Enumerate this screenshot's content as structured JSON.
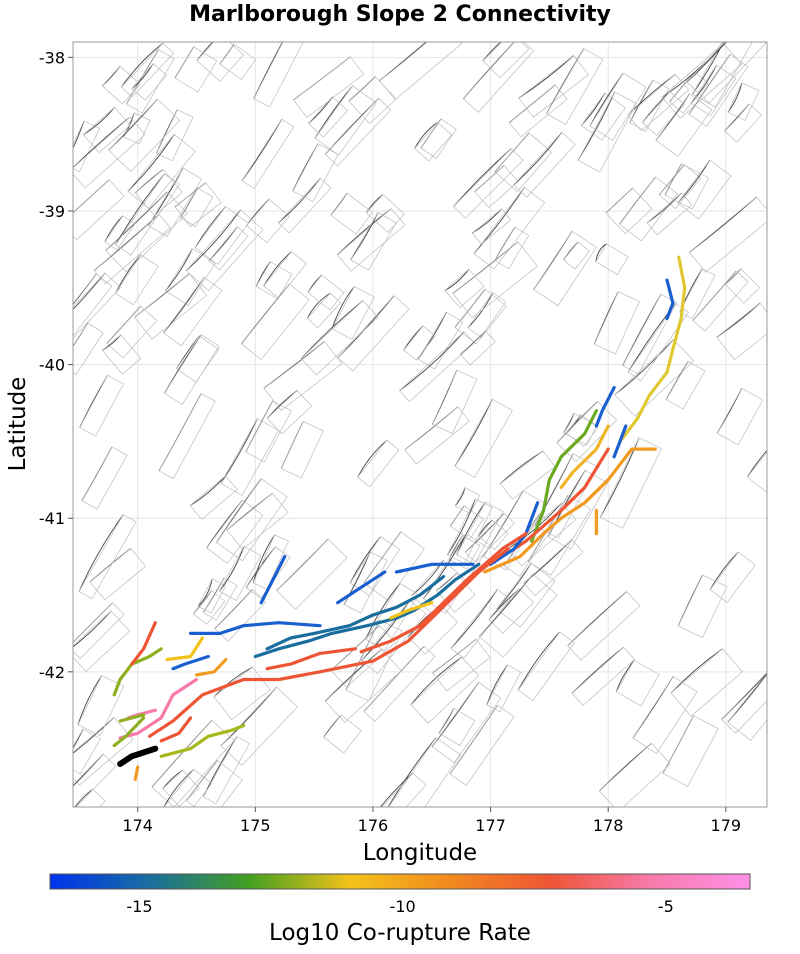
{
  "chart_data": {
    "type": "map",
    "title": "Marlborough Slope 2 Connectivity",
    "xlabel": "Longitude",
    "ylabel": "Latitude",
    "xlim": [
      173.45,
      179.35
    ],
    "ylim": [
      -42.88,
      -37.9
    ],
    "x_ticks": [
      "174",
      "175",
      "176",
      "177",
      "178",
      "179"
    ],
    "y_ticks": [
      "-38",
      "-39",
      "-40",
      "-41",
      "-42"
    ],
    "grid": true,
    "colorbar": {
      "label": "Log10 Co-rupture Rate",
      "range": [
        -16.7,
        -3.4
      ],
      "ticks": [
        "-15",
        "-10",
        "-5"
      ],
      "colors": [
        "#0033ee",
        "#1a6e9e",
        "#44a020",
        "#f3c21a",
        "#f28a1e",
        "#ee5535",
        "#f77aab",
        "#ff90e8"
      ]
    },
    "highlighted_faults": [
      {
        "rate": -16.0,
        "color": "#1a5fd0",
        "points": [
          [
            178.5,
            -39.45
          ],
          [
            178.55,
            -39.6
          ],
          [
            178.5,
            -39.7
          ]
        ]
      },
      {
        "rate": -9.5,
        "color": "#e0c830",
        "points": [
          [
            178.6,
            -39.3
          ],
          [
            178.65,
            -39.5
          ],
          [
            178.62,
            -39.7
          ],
          [
            178.55,
            -39.9
          ],
          [
            178.5,
            -40.05
          ],
          [
            178.35,
            -40.2
          ],
          [
            178.25,
            -40.35
          ],
          [
            178.1,
            -40.5
          ]
        ]
      },
      {
        "rate": -15.5,
        "color": "#1a5fd0",
        "points": [
          [
            178.05,
            -40.15
          ],
          [
            177.95,
            -40.3
          ],
          [
            177.9,
            -40.4
          ]
        ]
      },
      {
        "rate": -12.5,
        "color": "#6aaa20",
        "points": [
          [
            177.9,
            -40.3
          ],
          [
            177.8,
            -40.45
          ],
          [
            177.6,
            -40.6
          ],
          [
            177.5,
            -40.75
          ],
          [
            177.45,
            -40.95
          ],
          [
            177.35,
            -41.15
          ]
        ]
      },
      {
        "rate": -9.0,
        "color": "#f0b428",
        "points": [
          [
            178.0,
            -40.4
          ],
          [
            177.9,
            -40.55
          ],
          [
            177.7,
            -40.7
          ],
          [
            177.6,
            -40.8
          ]
        ]
      },
      {
        "rate": -6.0,
        "color": "#ee5535",
        "points": [
          [
            178.0,
            -40.55
          ],
          [
            177.8,
            -40.8
          ],
          [
            177.6,
            -40.95
          ],
          [
            177.45,
            -41.05
          ],
          [
            177.3,
            -41.15
          ],
          [
            177.2,
            -41.2
          ]
        ]
      },
      {
        "rate": -15.0,
        "color": "#1a5fd0",
        "points": [
          [
            178.15,
            -40.4
          ],
          [
            178.1,
            -40.5
          ],
          [
            178.05,
            -40.6
          ]
        ]
      },
      {
        "rate": -7.5,
        "color": "#f29a20",
        "points": [
          [
            178.4,
            -40.55
          ],
          [
            178.2,
            -40.55
          ],
          [
            178.0,
            -40.75
          ],
          [
            177.8,
            -40.9
          ],
          [
            177.6,
            -41.0
          ],
          [
            177.45,
            -41.1
          ],
          [
            177.25,
            -41.25
          ],
          [
            176.95,
            -41.35
          ]
        ]
      },
      {
        "rate": -15.5,
        "color": "#1a5fd0",
        "points": [
          [
            177.4,
            -40.9
          ],
          [
            177.3,
            -41.1
          ],
          [
            177.2,
            -41.2
          ],
          [
            177.0,
            -41.3
          ]
        ]
      },
      {
        "rate": -8.0,
        "color": "#f29a20",
        "points": [
          [
            177.9,
            -40.95
          ],
          [
            177.9,
            -41.1
          ]
        ]
      },
      {
        "rate": -6.0,
        "color": "#ee5535",
        "points": [
          [
            177.3,
            -41.1
          ],
          [
            177.1,
            -41.2
          ],
          [
            176.95,
            -41.3
          ],
          [
            176.8,
            -41.4
          ],
          [
            176.6,
            -41.55
          ],
          [
            176.4,
            -41.7
          ],
          [
            176.15,
            -41.8
          ],
          [
            175.9,
            -41.87
          ]
        ]
      },
      {
        "rate": -6.5,
        "color": "#ee5535",
        "points": [
          [
            177.15,
            -41.2
          ],
          [
            176.9,
            -41.35
          ],
          [
            176.7,
            -41.5
          ],
          [
            176.5,
            -41.65
          ],
          [
            176.3,
            -41.8
          ],
          [
            176.0,
            -41.93
          ],
          [
            175.55,
            -42.0
          ],
          [
            175.2,
            -42.05
          ],
          [
            174.9,
            -42.05
          ],
          [
            174.55,
            -42.15
          ],
          [
            174.3,
            -42.32
          ],
          [
            174.1,
            -42.42
          ]
        ]
      },
      {
        "rate": -14.0,
        "color": "#1a6e9e",
        "points": [
          [
            176.9,
            -41.3
          ],
          [
            176.7,
            -41.4
          ],
          [
            176.55,
            -41.5
          ],
          [
            176.35,
            -41.6
          ],
          [
            176.2,
            -41.65
          ],
          [
            175.95,
            -41.7
          ],
          [
            175.65,
            -41.75
          ],
          [
            175.45,
            -41.8
          ],
          [
            175.2,
            -41.85
          ],
          [
            175.0,
            -41.9
          ]
        ]
      },
      {
        "rate": -14.5,
        "color": "#1a6e9e",
        "points": [
          [
            176.6,
            -41.38
          ],
          [
            176.4,
            -41.5
          ],
          [
            176.2,
            -41.58
          ],
          [
            176.0,
            -41.63
          ],
          [
            175.8,
            -41.7
          ],
          [
            175.5,
            -41.75
          ],
          [
            175.3,
            -41.78
          ],
          [
            175.1,
            -41.85
          ]
        ]
      },
      {
        "rate": -16.0,
        "color": "#1a5fd0",
        "points": [
          [
            176.85,
            -41.3
          ],
          [
            176.5,
            -41.3
          ],
          [
            176.2,
            -41.35
          ]
        ]
      },
      {
        "rate": -16.0,
        "color": "#1a5fd0",
        "points": [
          [
            176.1,
            -41.35
          ],
          [
            175.9,
            -41.45
          ],
          [
            175.7,
            -41.55
          ]
        ]
      },
      {
        "rate": -16.0,
        "color": "#1a5fd0",
        "points": [
          [
            175.25,
            -41.25
          ],
          [
            175.15,
            -41.4
          ],
          [
            175.05,
            -41.55
          ]
        ]
      },
      {
        "rate": -10.0,
        "color": "#f3c21a",
        "points": [
          [
            176.5,
            -41.55
          ],
          [
            176.3,
            -41.6
          ],
          [
            176.15,
            -41.65
          ]
        ]
      },
      {
        "rate": -16.0,
        "color": "#1a5fd0",
        "points": [
          [
            175.55,
            -41.7
          ],
          [
            175.2,
            -41.68
          ],
          [
            174.9,
            -41.7
          ],
          [
            174.7,
            -41.75
          ],
          [
            174.45,
            -41.75
          ]
        ]
      },
      {
        "rate": -6.0,
        "color": "#ee5535",
        "points": [
          [
            175.85,
            -41.85
          ],
          [
            175.55,
            -41.88
          ],
          [
            175.3,
            -41.95
          ],
          [
            175.1,
            -41.98
          ]
        ]
      },
      {
        "rate": -14.5,
        "color": "#1a5fd0",
        "points": [
          [
            174.6,
            -41.9
          ],
          [
            174.4,
            -41.95
          ],
          [
            174.3,
            -41.98
          ]
        ]
      },
      {
        "rate": -9.5,
        "color": "#f3c21a",
        "points": [
          [
            174.55,
            -41.78
          ],
          [
            174.45,
            -41.9
          ],
          [
            174.25,
            -41.92
          ]
        ]
      },
      {
        "rate": -7.5,
        "color": "#f29a20",
        "points": [
          [
            174.75,
            -41.92
          ],
          [
            174.65,
            -42.0
          ],
          [
            174.5,
            -42.02
          ]
        ]
      },
      {
        "rate": -12.0,
        "color": "#8eb020",
        "points": [
          [
            174.2,
            -41.85
          ],
          [
            174.1,
            -41.9
          ],
          [
            173.95,
            -41.95
          ],
          [
            173.85,
            -42.05
          ],
          [
            173.8,
            -42.15
          ]
        ]
      },
      {
        "rate": -6.0,
        "color": "#ee5535",
        "points": [
          [
            174.15,
            -41.68
          ],
          [
            174.05,
            -41.85
          ],
          [
            173.95,
            -41.95
          ]
        ]
      },
      {
        "rate": -3.8,
        "color": "#f77aab",
        "points": [
          [
            174.5,
            -42.05
          ],
          [
            174.3,
            -42.15
          ],
          [
            174.2,
            -42.3
          ],
          [
            174.0,
            -42.4
          ],
          [
            173.85,
            -42.43
          ]
        ]
      },
      {
        "rate": -4.0,
        "color": "#f77aab",
        "points": [
          [
            174.15,
            -42.25
          ],
          [
            174.0,
            -42.28
          ],
          [
            173.92,
            -42.3
          ]
        ]
      },
      {
        "rate": -12.0,
        "color": "#8eb020",
        "points": [
          [
            174.05,
            -42.28
          ],
          [
            173.85,
            -42.32
          ]
        ]
      },
      {
        "rate": -12.0,
        "color": "#8eb020",
        "points": [
          [
            174.05,
            -42.3
          ],
          [
            173.9,
            -42.42
          ],
          [
            173.8,
            -42.48
          ]
        ]
      },
      {
        "rate": -6.5,
        "color": "#ee5535",
        "points": [
          [
            174.45,
            -42.3
          ],
          [
            174.35,
            -42.4
          ],
          [
            174.2,
            -42.45
          ]
        ]
      },
      {
        "rate": -11.5,
        "color": "#a6b81c",
        "points": [
          [
            174.9,
            -42.35
          ],
          [
            174.8,
            -42.38
          ],
          [
            174.6,
            -42.42
          ],
          [
            174.45,
            -42.5
          ],
          [
            174.2,
            -42.55
          ]
        ]
      },
      {
        "rate": -20.0,
        "color": "#000000",
        "points": [
          [
            173.85,
            -42.6
          ],
          [
            173.95,
            -42.55
          ],
          [
            174.15,
            -42.5
          ]
        ]
      },
      {
        "rate": -8.0,
        "color": "#f29a20",
        "points": [
          [
            174.0,
            -42.62
          ],
          [
            173.98,
            -42.7
          ]
        ]
      }
    ]
  }
}
